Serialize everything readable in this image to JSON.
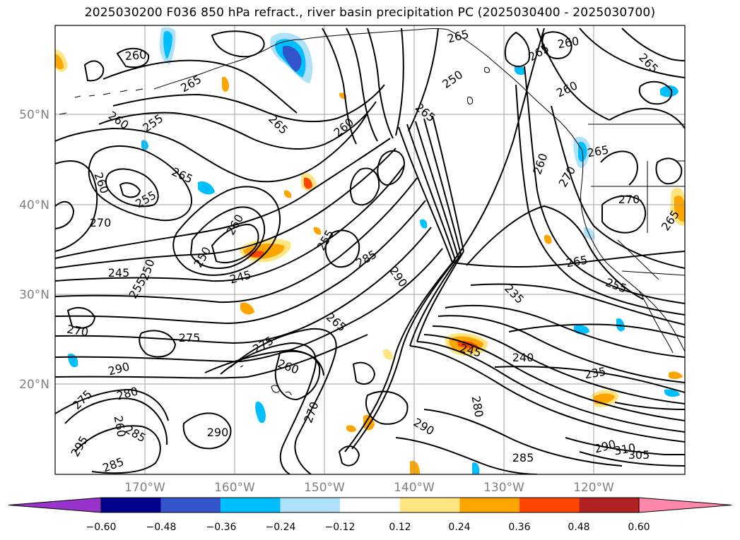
{
  "title": "2025030200 F036 850 hPa refract., river basin precipitation PC (2025030400 - 2025030700)",
  "map": {
    "lat_ticks": [
      "50°N",
      "40°N",
      "30°N",
      "20°N"
    ],
    "lon_ticks": [
      "170°W",
      "160°W",
      "150°W",
      "140°W",
      "130°W",
      "120°W"
    ],
    "lat_values": [
      50,
      40,
      30,
      20
    ],
    "lon_values": [
      -170,
      -160,
      -150,
      -140,
      -130,
      -120
    ],
    "gridline_color": "#a0a0a0",
    "contour_labels": [
      {
        "text": "265"
      },
      {
        "text": "260"
      },
      {
        "text": "265"
      },
      {
        "text": "260"
      },
      {
        "text": "265"
      },
      {
        "text": "260"
      },
      {
        "text": "250"
      },
      {
        "text": "265"
      },
      {
        "text": "265"
      },
      {
        "text": "260"
      },
      {
        "text": "255"
      },
      {
        "text": "260"
      },
      {
        "text": "265"
      },
      {
        "text": "260"
      },
      {
        "text": "255"
      },
      {
        "text": "265"
      },
      {
        "text": "265"
      },
      {
        "text": "260"
      },
      {
        "text": "270"
      },
      {
        "text": "270"
      },
      {
        "text": "265"
      },
      {
        "text": "270"
      },
      {
        "text": "260"
      },
      {
        "text": "255"
      },
      {
        "text": "285"
      },
      {
        "text": "250"
      },
      {
        "text": "245"
      },
      {
        "text": "290"
      },
      {
        "text": "265"
      },
      {
        "text": "245"
      },
      {
        "text": "250"
      },
      {
        "text": "255"
      },
      {
        "text": "255"
      },
      {
        "text": "235"
      },
      {
        "text": "270"
      },
      {
        "text": "275"
      },
      {
        "text": "265"
      },
      {
        "text": "275"
      },
      {
        "text": "245"
      },
      {
        "text": "240"
      },
      {
        "text": "260"
      },
      {
        "text": "290"
      },
      {
        "text": "235"
      },
      {
        "text": "280"
      },
      {
        "text": "275"
      },
      {
        "text": "270"
      },
      {
        "text": "280"
      },
      {
        "text": "290"
      },
      {
        "text": "260"
      },
      {
        "text": "285"
      },
      {
        "text": "290"
      },
      {
        "text": "295"
      },
      {
        "text": "285"
      },
      {
        "text": "285"
      },
      {
        "text": "290"
      },
      {
        "text": "310"
      },
      {
        "text": "305"
      }
    ]
  },
  "colorbar": {
    "colors": [
      "#9933cc",
      "#00008b",
      "#3355cc",
      "#00bfff",
      "#aee2fa",
      "#ffffff",
      "#ffe680",
      "#ffa500",
      "#ff4500",
      "#b22222",
      "#ff88aa"
    ],
    "labels": [
      "−0.60",
      "−0.48",
      "−0.36",
      "−0.24",
      "−0.12",
      "0.12",
      "0.24",
      "0.36",
      "0.48",
      "0.60"
    ],
    "extend": "both"
  }
}
